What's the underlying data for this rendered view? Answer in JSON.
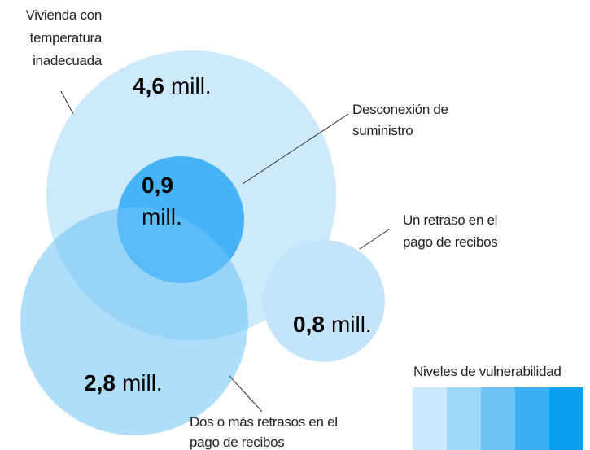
{
  "circles": [
    {
      "label": [
        "Vivienda con",
        "temperatura",
        "inadecuada"
      ],
      "value": "4,6",
      "unit": "mill."
    },
    {
      "label": [
        "Desconexión de",
        "suministro"
      ],
      "value": "0,9",
      "unit": "mill."
    },
    {
      "label": [
        "Un retraso en el",
        "pago de recibos"
      ],
      "value": "0,8",
      "unit": "mill."
    },
    {
      "label": [
        "Dos o más retrasos en el",
        "pago de recibos"
      ],
      "value": "2,8",
      "unit": "mill."
    }
  ],
  "legend": {
    "title": "Niveles de vulnerabilidad"
  }
}
